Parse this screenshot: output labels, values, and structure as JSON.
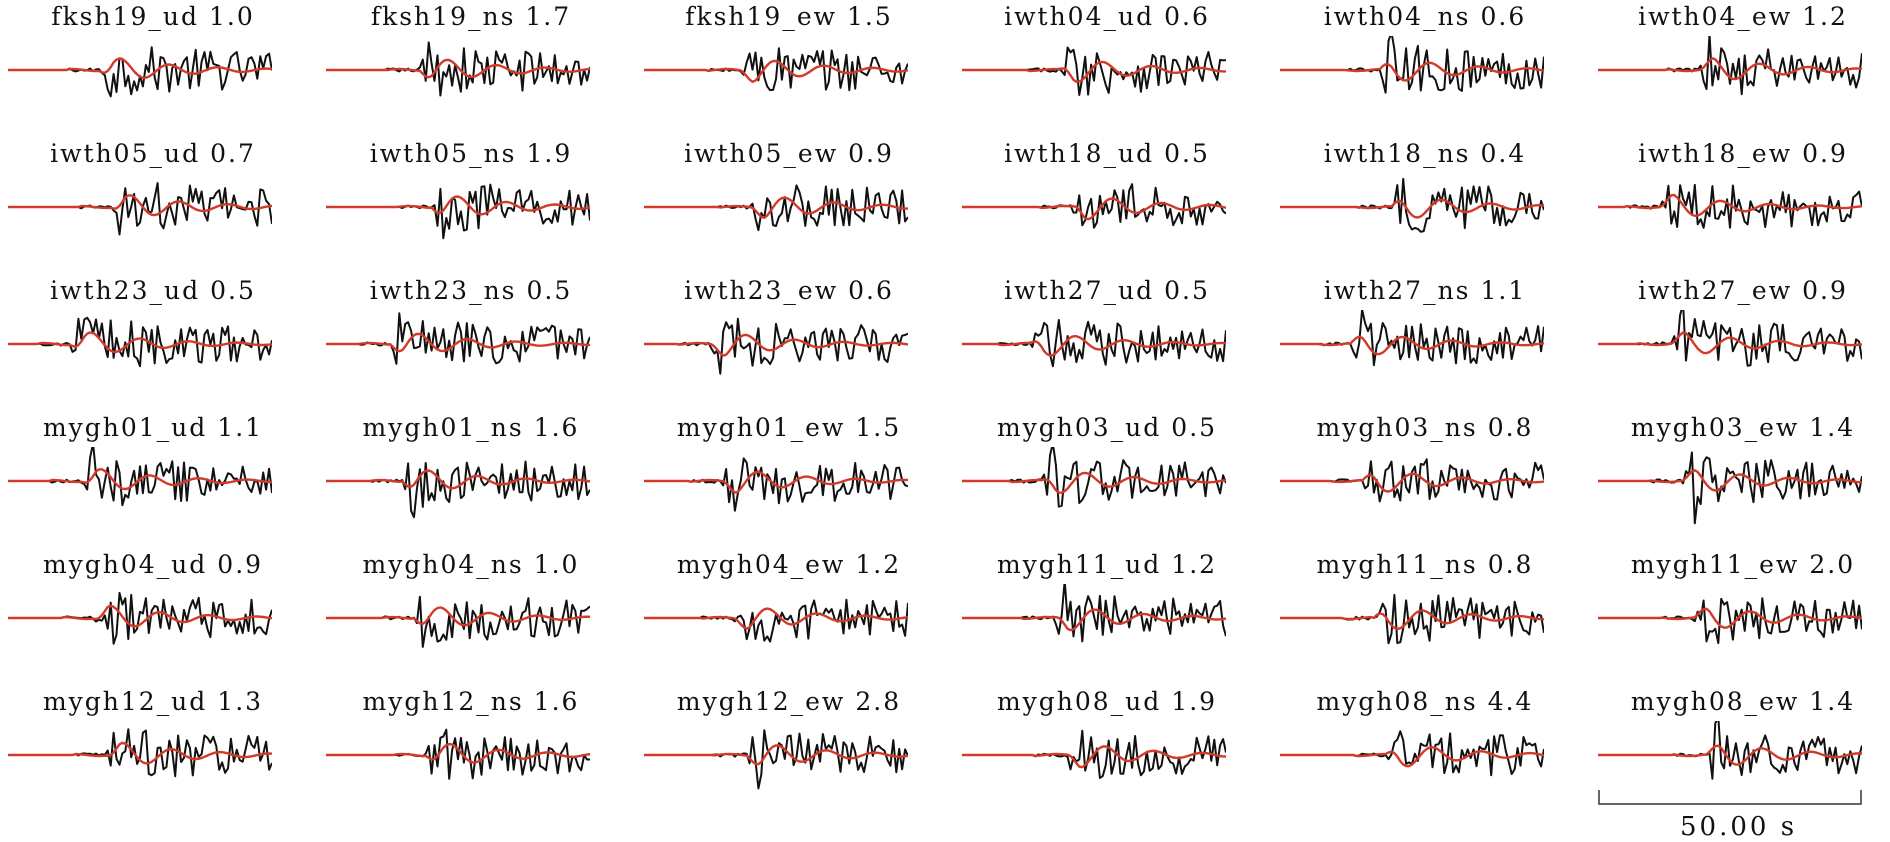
{
  "chart_data": {
    "type": "line",
    "series_colors": {
      "observed": "#111111",
      "synthetic": "#d23a2a"
    },
    "panels": [
      {
        "station": "fksh19_ud",
        "amp": "1.0"
      },
      {
        "station": "fksh19_ns",
        "amp": "1.7"
      },
      {
        "station": "fksh19_ew",
        "amp": "1.5"
      },
      {
        "station": "iwth04_ud",
        "amp": "0.6"
      },
      {
        "station": "iwth04_ns",
        "amp": "0.6"
      },
      {
        "station": "iwth04_ew",
        "amp": "1.2"
      },
      {
        "station": "iwth05_ud",
        "amp": "0.7"
      },
      {
        "station": "iwth05_ns",
        "amp": "1.9"
      },
      {
        "station": "iwth05_ew",
        "amp": "0.9"
      },
      {
        "station": "iwth18_ud",
        "amp": "0.5"
      },
      {
        "station": "iwth18_ns",
        "amp": "0.4"
      },
      {
        "station": "iwth18_ew",
        "amp": "0.9"
      },
      {
        "station": "iwth23_ud",
        "amp": "0.5"
      },
      {
        "station": "iwth23_ns",
        "amp": "0.5"
      },
      {
        "station": "iwth23_ew",
        "amp": "0.6"
      },
      {
        "station": "iwth27_ud",
        "amp": "0.5"
      },
      {
        "station": "iwth27_ns",
        "amp": "1.1"
      },
      {
        "station": "iwth27_ew",
        "amp": "0.9"
      },
      {
        "station": "mygh01_ud",
        "amp": "1.1"
      },
      {
        "station": "mygh01_ns",
        "amp": "1.6"
      },
      {
        "station": "mygh01_ew",
        "amp": "1.5"
      },
      {
        "station": "mygh03_ud",
        "amp": "0.5"
      },
      {
        "station": "mygh03_ns",
        "amp": "0.8"
      },
      {
        "station": "mygh03_ew",
        "amp": "1.4"
      },
      {
        "station": "mygh04_ud",
        "amp": "0.9"
      },
      {
        "station": "mygh04_ns",
        "amp": "1.0"
      },
      {
        "station": "mygh04_ew",
        "amp": "1.2"
      },
      {
        "station": "mygh11_ud",
        "amp": "1.2"
      },
      {
        "station": "mygh11_ns",
        "amp": "0.8"
      },
      {
        "station": "mygh11_ew",
        "amp": "2.0"
      },
      {
        "station": "mygh12_ud",
        "amp": "1.3"
      },
      {
        "station": "mygh12_ns",
        "amp": "1.6"
      },
      {
        "station": "mygh12_ew",
        "amp": "2.8"
      },
      {
        "station": "mygh08_ud",
        "amp": "1.9"
      },
      {
        "station": "mygh08_ns",
        "amp": "4.4"
      },
      {
        "station": "mygh08_ew",
        "amp": "1.4"
      }
    ],
    "scale_bar": {
      "value": 50.0,
      "label": "50.00 s"
    }
  }
}
